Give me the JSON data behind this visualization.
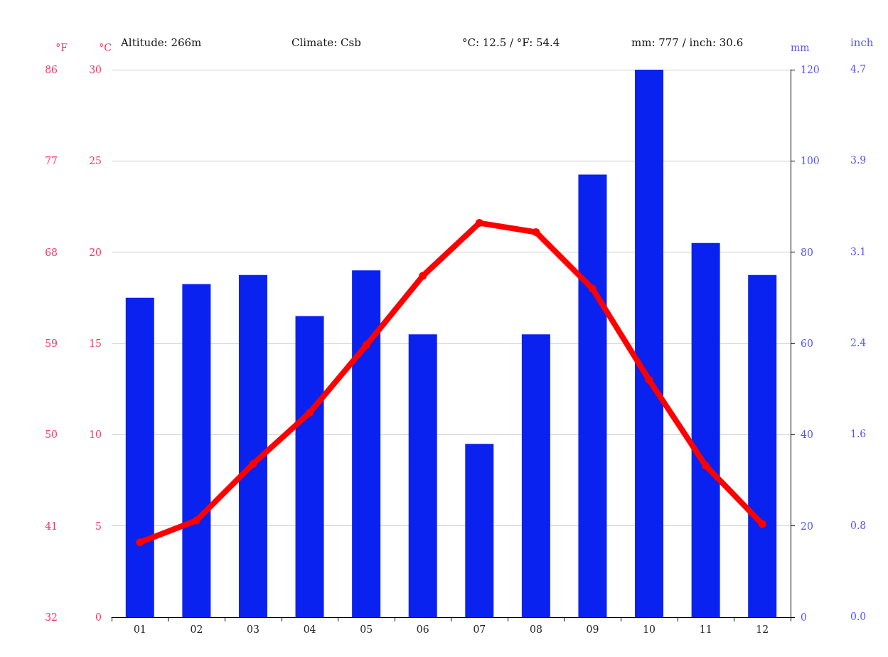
{
  "chart_data": {
    "type": "bar",
    "categories": [
      "01",
      "02",
      "03",
      "04",
      "05",
      "06",
      "07",
      "08",
      "09",
      "10",
      "11",
      "12"
    ],
    "series": [
      {
        "axis": "y2",
        "color": "#0a22f0",
        "values": [
          70,
          73,
          75,
          66,
          76,
          62,
          38,
          62,
          97,
          120,
          82,
          75
        ]
      },
      {
        "type": "line",
        "axis": "y",
        "color": "#ff0000",
        "values": [
          4.1,
          5.3,
          8.4,
          11.2,
          14.9,
          18.7,
          21.6,
          21.1,
          18.0,
          13.0,
          8.3,
          5.1
        ]
      }
    ],
    "ylabel": "°C",
    "y2label": "mm",
    "y3label": "°F",
    "ylim": [
      0,
      30
    ],
    "yticks": [
      0,
      5,
      10,
      15,
      20,
      25,
      30
    ],
    "y2lim": [
      0,
      120
    ],
    "y2ticks": [
      0,
      20,
      40,
      60,
      80,
      100,
      120
    ],
    "y3lim": [
      32,
      86
    ],
    "y3ticks": [
      32,
      41,
      50,
      59,
      68,
      77,
      86
    ],
    "annotations": [
      "Altitude: 266m",
      "Climate: Csb",
      "°C: 12.5 / °F: 54.4",
      "mm: 777 / inch: 30.6",
      "inch",
      "0.0",
      "0.8",
      "1.6",
      "2.4",
      "3.1",
      "3.9",
      "4.7"
    ],
    "grid": "y",
    "marker": "circle",
    "line_style": "solid"
  }
}
